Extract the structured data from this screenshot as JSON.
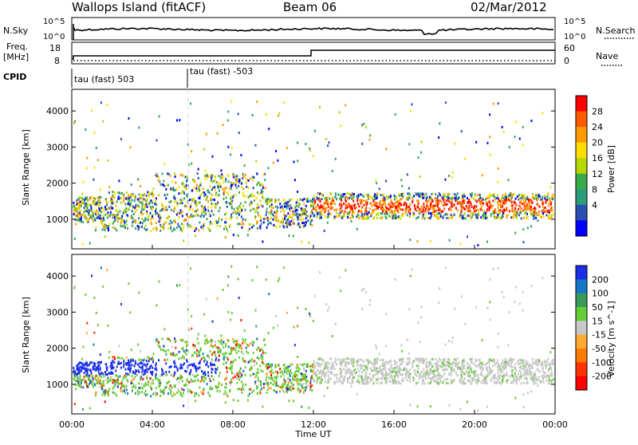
{
  "header": {
    "site": "Wallops Island (fitACF)",
    "beam": "Beam 06",
    "date": "02/Mar/2012"
  },
  "top_panel": {
    "left_label": "N.Sky",
    "left_ticks": [
      "10^5",
      "10^0"
    ],
    "right_ticks": [
      "10^5",
      "10^0"
    ],
    "right_label": "N.Search"
  },
  "freq_panel": {
    "left_label": "Freq.",
    "left_unit": "[MHz]",
    "left_ticks": [
      "18",
      "8"
    ],
    "right_ticks": [
      "60",
      "0"
    ],
    "right_label": "Nave"
  },
  "cpid": {
    "label": "CPID",
    "segments": [
      "tau (fast) 503",
      "tau (fast) -503"
    ]
  },
  "chart_data": [
    {
      "type": "heatmap",
      "name": "power",
      "ylabel": "Slant Range [km]",
      "ylim": [
        180,
        4600
      ],
      "yticks": [
        "4000",
        "3000",
        "2000",
        "1000"
      ],
      "colorbar": {
        "label": "Power [dB]",
        "ticks": [
          "28",
          "24",
          "20",
          "16",
          "12",
          "8",
          "4"
        ],
        "colors": [
          "#ff0000",
          "#ff5a00",
          "#ff9a00",
          "#ffdd00",
          "#b4d800",
          "#3aa94a",
          "#2d9c7a",
          "#2a4fb0",
          "#0000ff"
        ]
      }
    },
    {
      "type": "heatmap",
      "name": "velocity",
      "ylabel": "Slant Range [km]",
      "ylim": [
        180,
        4600
      ],
      "yticks": [
        "4000",
        "3000",
        "2000",
        "1000"
      ],
      "colorbar": {
        "label": "Velocity [m s^-1]",
        "ticks": [
          "200",
          "100",
          "50",
          "15",
          "-15",
          "-50",
          "-100",
          "-200"
        ],
        "colors": [
          "#1a2ee8",
          "#1577c8",
          "#3a9a5a",
          "#66cc33",
          "#c8c8c8",
          "#ffaa33",
          "#ff7a00",
          "#ff3300",
          "#ff0000"
        ]
      }
    }
  ],
  "x_axis": {
    "ticks": [
      "00:00",
      "04:00",
      "08:00",
      "12:00",
      "16:00",
      "20:00",
      "00:00"
    ],
    "label": "Time UT"
  }
}
